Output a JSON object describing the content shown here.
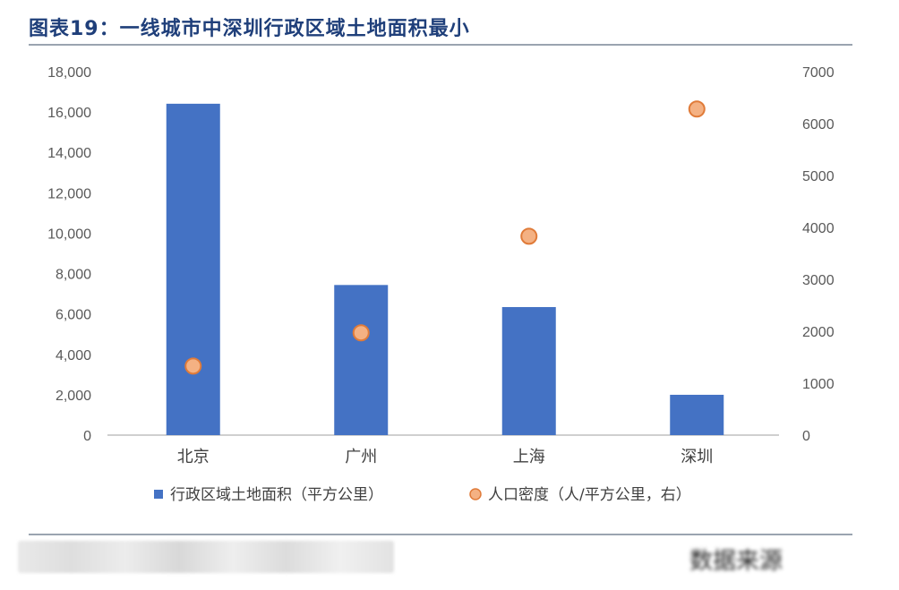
{
  "title": "图表19：一线城市中深圳行政区域土地面积最小",
  "footer": {
    "source_text": "数据来源"
  },
  "chart_data": {
    "type": "bar",
    "categories": [
      "北京",
      "广州",
      "上海",
      "深圳"
    ],
    "series": [
      {
        "name": "行政区域土地面积（平方公里）",
        "type": "bar",
        "axis": "left",
        "values": [
          16410,
          7434,
          6341,
          1997
        ],
        "color": "#4472c4"
      },
      {
        "name": "人口密度（人/平方公里，右）",
        "type": "scatter",
        "axis": "right",
        "values": [
          1330,
          1970,
          3830,
          6280
        ],
        "color": "#f4b183"
      }
    ],
    "y_left": {
      "min": 0,
      "max": 18000,
      "ticks": [
        "0",
        "2,000",
        "4,000",
        "6,000",
        "8,000",
        "10,000",
        "12,000",
        "14,000",
        "16,000",
        "18,000"
      ]
    },
    "y_right": {
      "min": 0,
      "max": 7000,
      "ticks": [
        "0",
        "1000",
        "2000",
        "3000",
        "4000",
        "5000",
        "6000",
        "7000"
      ]
    },
    "legend_position": "bottom",
    "grid": false
  }
}
